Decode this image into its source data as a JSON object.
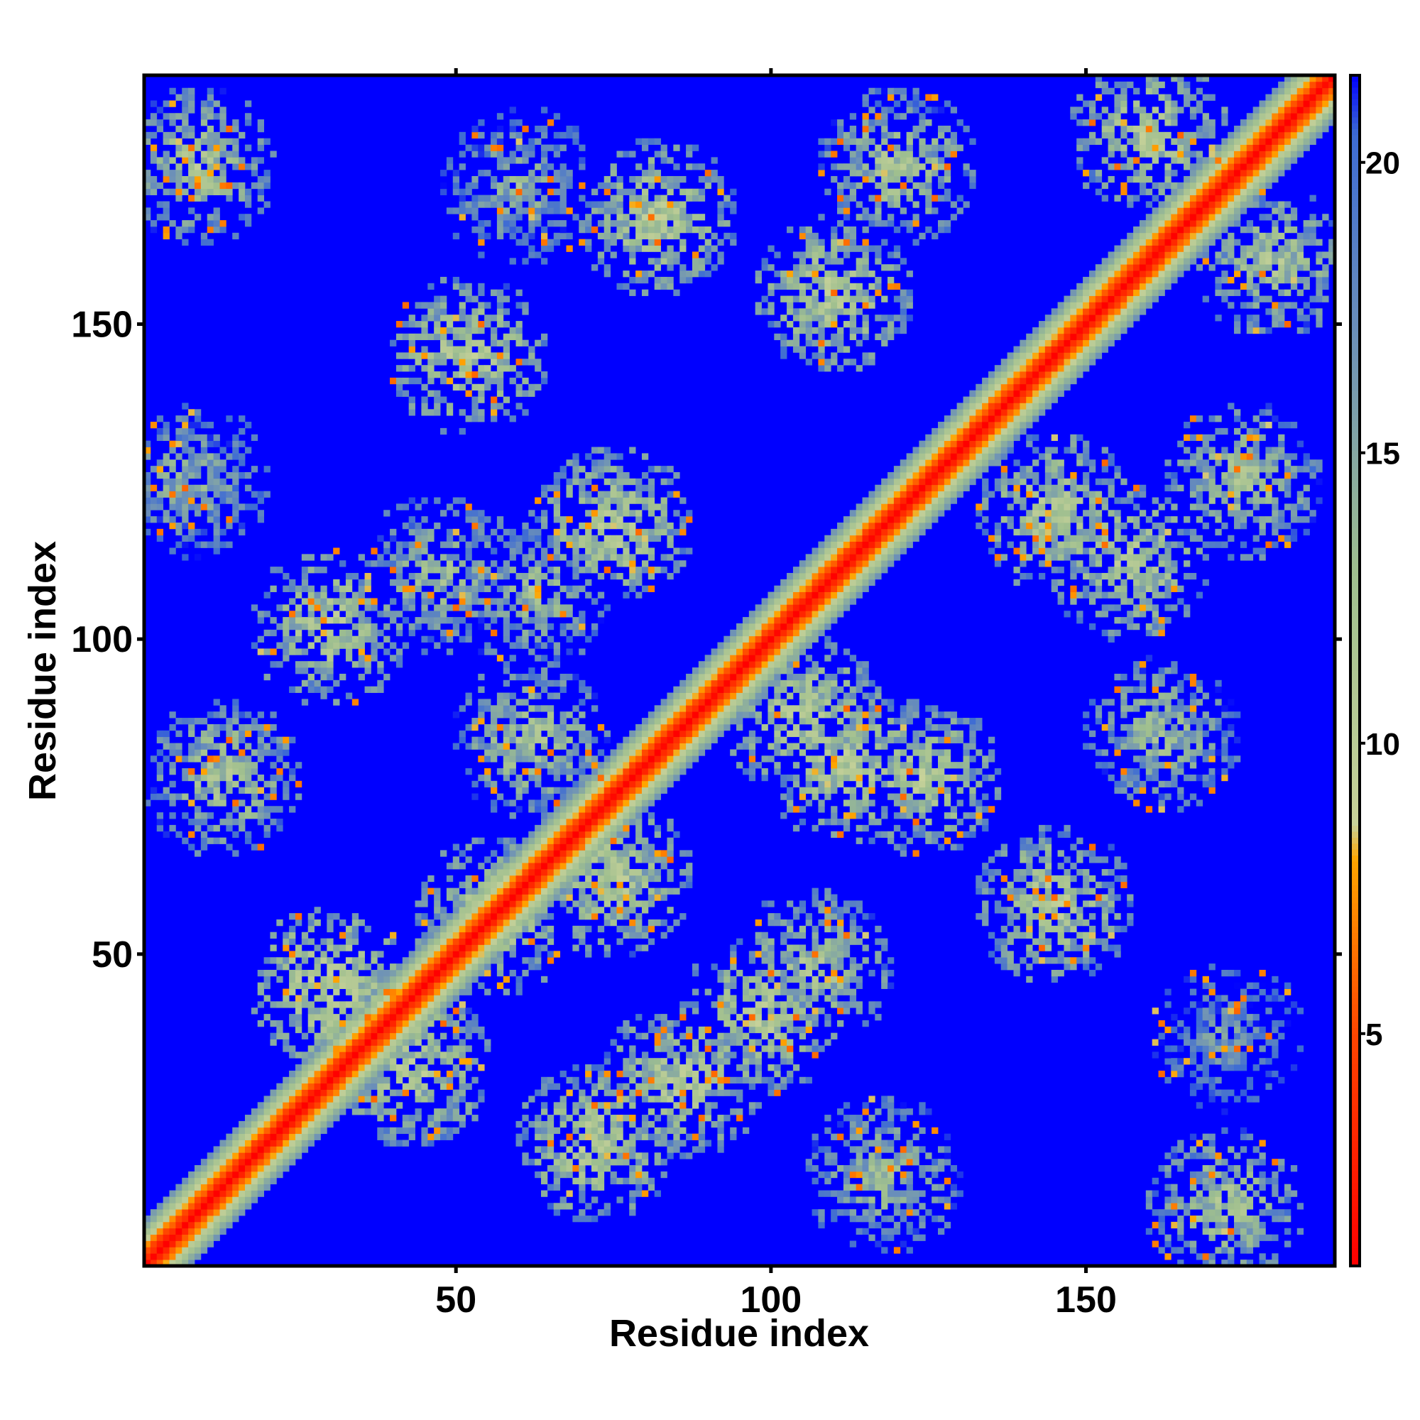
{
  "chart_data": {
    "type": "heatmap",
    "title": "",
    "xlabel": "Residue index",
    "ylabel": "Residue index",
    "xlim": [
      1,
      189
    ],
    "ylim": [
      1,
      189
    ],
    "x_ticks": [
      50,
      100,
      150
    ],
    "y_ticks": [
      50,
      100,
      150
    ],
    "n_residues": 189,
    "colorbar": {
      "ticks": [
        5,
        10,
        15,
        20
      ],
      "range": [
        1,
        21.5
      ],
      "stops": [
        {
          "value": 1,
          "color": "#ff0000"
        },
        {
          "value": 5,
          "color": "#ff4500"
        },
        {
          "value": 8,
          "color": "#ffa500"
        },
        {
          "value": 8.6,
          "color": "#c8d29a"
        },
        {
          "value": 13,
          "color": "#9fbf8f"
        },
        {
          "value": 17,
          "color": "#6c90b8"
        },
        {
          "value": 20.5,
          "color": "#3d6bd4"
        },
        {
          "value": 21.5,
          "color": "#0000ff"
        }
      ]
    },
    "background_value": 21.5,
    "diagonal_band": {
      "max_offset": 7,
      "value_at_zero": 1,
      "value_per_residue": 2.2
    },
    "contact_regions": [
      {
        "i": 9,
        "j": 175,
        "value": 12
      },
      {
        "i": 8,
        "j": 125,
        "value": 14
      },
      {
        "i": 13,
        "j": 78,
        "value": 12
      },
      {
        "i": 30,
        "j": 102,
        "value": 11
      },
      {
        "i": 30,
        "j": 45,
        "value": 10
      },
      {
        "i": 43,
        "j": 32,
        "value": 11
      },
      {
        "i": 47,
        "j": 110,
        "value": 13
      },
      {
        "i": 52,
        "j": 145,
        "value": 11
      },
      {
        "i": 56,
        "j": 56,
        "value": 11
      },
      {
        "i": 62,
        "j": 84,
        "value": 12
      },
      {
        "i": 62,
        "j": 108,
        "value": 13
      },
      {
        "i": 60,
        "j": 172,
        "value": 14
      },
      {
        "i": 72,
        "j": 20,
        "value": 11
      },
      {
        "i": 75,
        "j": 118,
        "value": 11
      },
      {
        "i": 75,
        "j": 62,
        "value": 11
      },
      {
        "i": 82,
        "j": 167,
        "value": 11
      },
      {
        "i": 86,
        "j": 30,
        "value": 11
      },
      {
        "i": 98,
        "j": 40,
        "value": 11
      },
      {
        "i": 107,
        "j": 48,
        "value": 12
      },
      {
        "i": 105,
        "j": 88,
        "value": 11
      },
      {
        "i": 112,
        "j": 80,
        "value": 11
      },
      {
        "i": 110,
        "j": 155,
        "value": 11
      },
      {
        "i": 118,
        "j": 15,
        "value": 13
      },
      {
        "i": 120,
        "j": 175,
        "value": 12
      },
      {
        "i": 124,
        "j": 78,
        "value": 11
      },
      {
        "i": 145,
        "j": 58,
        "value": 11
      },
      {
        "i": 145,
        "j": 120,
        "value": 11
      },
      {
        "i": 157,
        "j": 112,
        "value": 11
      },
      {
        "i": 160,
        "j": 180,
        "value": 11
      },
      {
        "i": 162,
        "j": 85,
        "value": 13
      },
      {
        "i": 172,
        "j": 10,
        "value": 12
      },
      {
        "i": 175,
        "j": 125,
        "value": 12
      },
      {
        "i": 180,
        "j": 160,
        "value": 12
      },
      {
        "i": 172,
        "j": 37,
        "value": 16
      }
    ]
  }
}
